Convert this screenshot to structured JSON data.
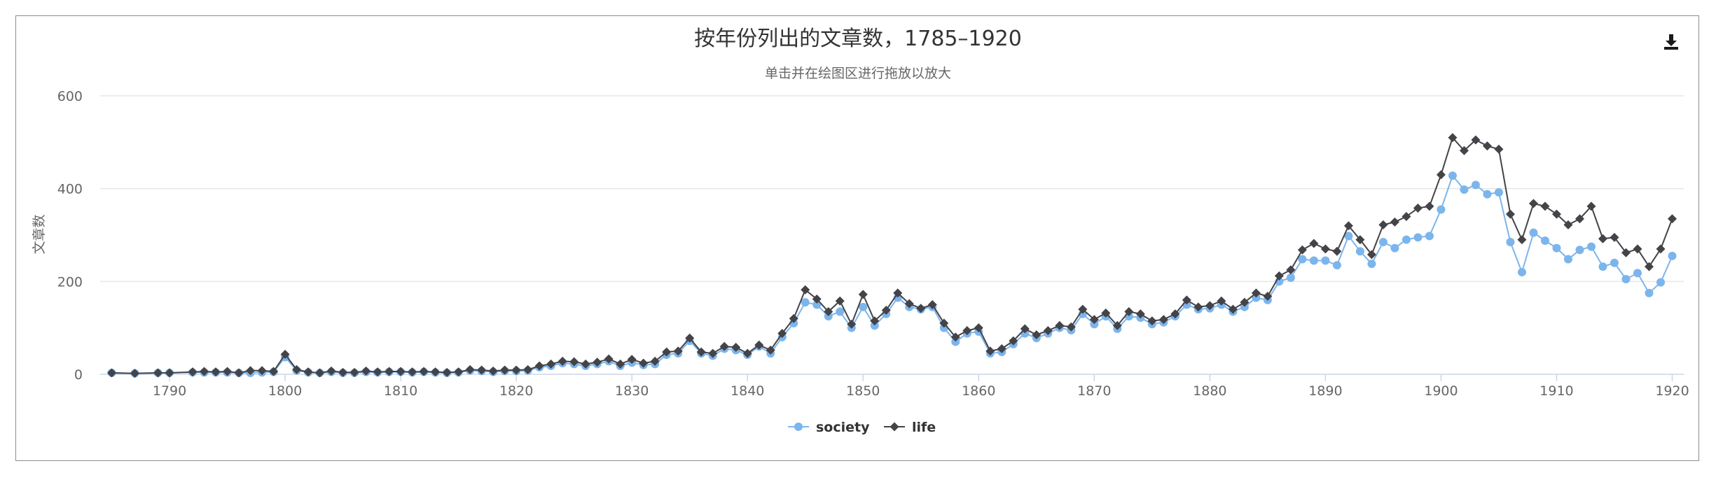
{
  "title": "按年份列出的文章数，1785–1920",
  "subtitle": "单击并在绘图区进行拖放以放大",
  "download_icon": "download-icon",
  "chart_data": {
    "type": "line",
    "title": "按年份列出的文章数，1785–1920",
    "subtitle": "单击并在绘图区进行拖放以放大",
    "xlabel": "",
    "ylabel": "文章数",
    "xlim": [
      1784,
      1921
    ],
    "ylim": [
      0,
      600
    ],
    "xticks": [
      1790,
      1800,
      1810,
      1820,
      1830,
      1840,
      1850,
      1860,
      1870,
      1880,
      1890,
      1900,
      1910,
      1920
    ],
    "yticks": [
      0,
      200,
      400,
      600
    ],
    "grid": true,
    "legend_position": "bottom-center",
    "series": [
      {
        "name": "society",
        "color": "#7cb5ec",
        "marker": "circle",
        "points": [
          [
            1785,
            3
          ],
          [
            1787,
            2
          ],
          [
            1789,
            3
          ],
          [
            1790,
            3
          ],
          [
            1792,
            4
          ],
          [
            1793,
            4
          ],
          [
            1794,
            4
          ],
          [
            1795,
            4
          ],
          [
            1796,
            3
          ],
          [
            1797,
            3
          ],
          [
            1798,
            4
          ],
          [
            1799,
            5
          ],
          [
            1800,
            37
          ],
          [
            1801,
            8
          ],
          [
            1802,
            4
          ],
          [
            1803,
            3
          ],
          [
            1804,
            5
          ],
          [
            1805,
            3
          ],
          [
            1806,
            3
          ],
          [
            1807,
            5
          ],
          [
            1808,
            4
          ],
          [
            1809,
            5
          ],
          [
            1810,
            5
          ],
          [
            1811,
            4
          ],
          [
            1812,
            5
          ],
          [
            1813,
            4
          ],
          [
            1814,
            3
          ],
          [
            1815,
            4
          ],
          [
            1816,
            8
          ],
          [
            1817,
            7
          ],
          [
            1818,
            5
          ],
          [
            1819,
            7
          ],
          [
            1820,
            7
          ],
          [
            1821,
            8
          ],
          [
            1822,
            15
          ],
          [
            1823,
            18
          ],
          [
            1824,
            24
          ],
          [
            1825,
            22
          ],
          [
            1826,
            18
          ],
          [
            1827,
            22
          ],
          [
            1828,
            28
          ],
          [
            1829,
            18
          ],
          [
            1830,
            25
          ],
          [
            1831,
            20
          ],
          [
            1832,
            22
          ],
          [
            1833,
            42
          ],
          [
            1834,
            45
          ],
          [
            1835,
            72
          ],
          [
            1836,
            45
          ],
          [
            1837,
            40
          ],
          [
            1838,
            55
          ],
          [
            1839,
            52
          ],
          [
            1840,
            42
          ],
          [
            1841,
            60
          ],
          [
            1842,
            45
          ],
          [
            1843,
            80
          ],
          [
            1844,
            110
          ],
          [
            1845,
            155
          ],
          [
            1846,
            150
          ],
          [
            1847,
            125
          ],
          [
            1848,
            135
          ],
          [
            1849,
            100
          ],
          [
            1850,
            145
          ],
          [
            1851,
            105
          ],
          [
            1852,
            130
          ],
          [
            1853,
            165
          ],
          [
            1854,
            145
          ],
          [
            1855,
            140
          ],
          [
            1856,
            145
          ],
          [
            1857,
            100
          ],
          [
            1858,
            70
          ],
          [
            1859,
            88
          ],
          [
            1860,
            92
          ],
          [
            1861,
            45
          ],
          [
            1862,
            48
          ],
          [
            1863,
            65
          ],
          [
            1864,
            88
          ],
          [
            1865,
            78
          ],
          [
            1866,
            88
          ],
          [
            1867,
            100
          ],
          [
            1868,
            95
          ],
          [
            1869,
            130
          ],
          [
            1870,
            108
          ],
          [
            1871,
            125
          ],
          [
            1872,
            98
          ],
          [
            1873,
            125
          ],
          [
            1874,
            122
          ],
          [
            1875,
            108
          ],
          [
            1876,
            112
          ],
          [
            1877,
            125
          ],
          [
            1878,
            150
          ],
          [
            1879,
            140
          ],
          [
            1880,
            142
          ],
          [
            1881,
            150
          ],
          [
            1882,
            135
          ],
          [
            1883,
            145
          ],
          [
            1884,
            165
          ],
          [
            1885,
            160
          ],
          [
            1886,
            200
          ],
          [
            1887,
            208
          ],
          [
            1888,
            248
          ],
          [
            1889,
            245
          ],
          [
            1890,
            245
          ],
          [
            1891,
            235
          ],
          [
            1892,
            298
          ],
          [
            1893,
            265
          ],
          [
            1894,
            238
          ],
          [
            1895,
            285
          ],
          [
            1896,
            272
          ],
          [
            1897,
            290
          ],
          [
            1898,
            295
          ],
          [
            1899,
            298
          ],
          [
            1900,
            355
          ],
          [
            1901,
            428
          ],
          [
            1902,
            398
          ],
          [
            1903,
            408
          ],
          [
            1904,
            388
          ],
          [
            1905,
            392
          ],
          [
            1906,
            285
          ],
          [
            1907,
            220
          ],
          [
            1908,
            305
          ],
          [
            1909,
            288
          ],
          [
            1910,
            272
          ],
          [
            1911,
            248
          ],
          [
            1912,
            268
          ],
          [
            1913,
            275
          ],
          [
            1914,
            232
          ],
          [
            1915,
            240
          ],
          [
            1916,
            205
          ],
          [
            1917,
            218
          ],
          [
            1918,
            175
          ],
          [
            1919,
            198
          ],
          [
            1920,
            255
          ]
        ]
      },
      {
        "name": "life",
        "color": "#434348",
        "marker": "diamond",
        "points": [
          [
            1785,
            3
          ],
          [
            1787,
            2
          ],
          [
            1789,
            3
          ],
          [
            1790,
            3
          ],
          [
            1792,
            5
          ],
          [
            1793,
            6
          ],
          [
            1794,
            5
          ],
          [
            1795,
            6
          ],
          [
            1796,
            3
          ],
          [
            1797,
            8
          ],
          [
            1798,
            8
          ],
          [
            1799,
            6
          ],
          [
            1800,
            43
          ],
          [
            1801,
            10
          ],
          [
            1802,
            5
          ],
          [
            1803,
            3
          ],
          [
            1804,
            7
          ],
          [
            1805,
            4
          ],
          [
            1806,
            4
          ],
          [
            1807,
            7
          ],
          [
            1808,
            5
          ],
          [
            1809,
            6
          ],
          [
            1810,
            6
          ],
          [
            1811,
            5
          ],
          [
            1812,
            6
          ],
          [
            1813,
            5
          ],
          [
            1814,
            4
          ],
          [
            1815,
            5
          ],
          [
            1816,
            10
          ],
          [
            1817,
            9
          ],
          [
            1818,
            7
          ],
          [
            1819,
            9
          ],
          [
            1820,
            9
          ],
          [
            1821,
            10
          ],
          [
            1822,
            18
          ],
          [
            1823,
            22
          ],
          [
            1824,
            28
          ],
          [
            1825,
            27
          ],
          [
            1826,
            22
          ],
          [
            1827,
            26
          ],
          [
            1828,
            33
          ],
          [
            1829,
            22
          ],
          [
            1830,
            32
          ],
          [
            1831,
            24
          ],
          [
            1832,
            28
          ],
          [
            1833,
            48
          ],
          [
            1834,
            50
          ],
          [
            1835,
            78
          ],
          [
            1836,
            48
          ],
          [
            1837,
            45
          ],
          [
            1838,
            60
          ],
          [
            1839,
            58
          ],
          [
            1840,
            45
          ],
          [
            1841,
            63
          ],
          [
            1842,
            52
          ],
          [
            1843,
            88
          ],
          [
            1844,
            120
          ],
          [
            1845,
            182
          ],
          [
            1846,
            162
          ],
          [
            1847,
            135
          ],
          [
            1848,
            158
          ],
          [
            1849,
            108
          ],
          [
            1850,
            172
          ],
          [
            1851,
            115
          ],
          [
            1852,
            138
          ],
          [
            1853,
            175
          ],
          [
            1854,
            152
          ],
          [
            1855,
            142
          ],
          [
            1856,
            150
          ],
          [
            1857,
            110
          ],
          [
            1858,
            80
          ],
          [
            1859,
            94
          ],
          [
            1860,
            100
          ],
          [
            1861,
            50
          ],
          [
            1862,
            55
          ],
          [
            1863,
            72
          ],
          [
            1864,
            98
          ],
          [
            1865,
            85
          ],
          [
            1866,
            94
          ],
          [
            1867,
            105
          ],
          [
            1868,
            102
          ],
          [
            1869,
            140
          ],
          [
            1870,
            118
          ],
          [
            1871,
            132
          ],
          [
            1872,
            105
          ],
          [
            1873,
            135
          ],
          [
            1874,
            130
          ],
          [
            1875,
            115
          ],
          [
            1876,
            118
          ],
          [
            1877,
            130
          ],
          [
            1878,
            160
          ],
          [
            1879,
            145
          ],
          [
            1880,
            148
          ],
          [
            1881,
            158
          ],
          [
            1882,
            140
          ],
          [
            1883,
            155
          ],
          [
            1884,
            175
          ],
          [
            1885,
            168
          ],
          [
            1886,
            212
          ],
          [
            1887,
            225
          ],
          [
            1888,
            268
          ],
          [
            1889,
            282
          ],
          [
            1890,
            270
          ],
          [
            1891,
            265
          ],
          [
            1892,
            320
          ],
          [
            1893,
            290
          ],
          [
            1894,
            258
          ],
          [
            1895,
            322
          ],
          [
            1896,
            328
          ],
          [
            1897,
            340
          ],
          [
            1898,
            358
          ],
          [
            1899,
            362
          ],
          [
            1900,
            430
          ],
          [
            1901,
            510
          ],
          [
            1902,
            482
          ],
          [
            1903,
            505
          ],
          [
            1904,
            492
          ],
          [
            1905,
            485
          ],
          [
            1906,
            345
          ],
          [
            1907,
            290
          ],
          [
            1908,
            368
          ],
          [
            1909,
            362
          ],
          [
            1910,
            345
          ],
          [
            1911,
            322
          ],
          [
            1912,
            335
          ],
          [
            1913,
            362
          ],
          [
            1914,
            292
          ],
          [
            1915,
            295
          ],
          [
            1916,
            262
          ],
          [
            1917,
            270
          ],
          [
            1918,
            232
          ],
          [
            1919,
            270
          ],
          [
            1920,
            335
          ]
        ]
      }
    ]
  }
}
